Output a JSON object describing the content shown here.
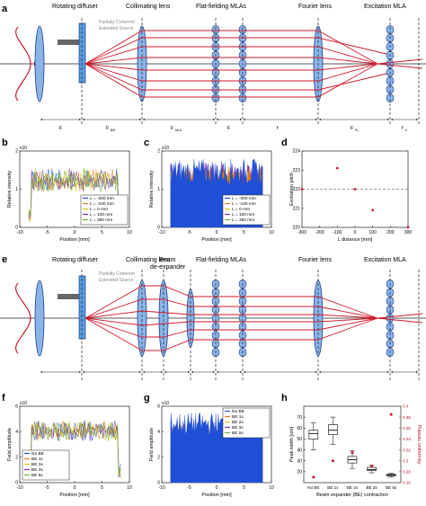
{
  "panels": {
    "a": "a",
    "b": "b",
    "c": "c",
    "d": "d",
    "e": "e",
    "f": "f",
    "g": "g",
    "h": "h"
  },
  "setup_a": {
    "labels": [
      "Rotating diffuser",
      "Collimating lens",
      "Flat-fielding MLAs",
      "Fourier lens",
      "Excitation MLA"
    ],
    "source_note": [
      "Partially Coherent",
      "Extended Source"
    ],
    "distances": [
      "F",
      "F",
      "F",
      "F",
      "f",
      "F",
      "f"
    ],
    "distance_subs": [
      "",
      "BM",
      "MLA",
      "",
      "",
      "FL",
      "e"
    ]
  },
  "setup_e": {
    "labels": [
      "Rotating diffuser",
      "Collimating lens",
      "Flat-fielding MLAs",
      "Fourier lens",
      "Excitation MLA"
    ],
    "expander_label": [
      "Beam",
      "de-expander"
    ],
    "source_note": [
      "Partially Coherent",
      "Extended Source"
    ]
  },
  "chart_data": [
    {
      "panel": "b",
      "type": "line",
      "xlabel": "Position [mm]",
      "ylabel": "Relative intensity",
      "exponent": "x10",
      "xlim": [
        -10,
        10
      ],
      "xticks": [
        "-10",
        "-5",
        "0",
        "5",
        "10"
      ],
      "yticks": [
        "0",
        "1",
        "2"
      ],
      "legend_position": "bottom-right",
      "series": [
        {
          "name": "L  = -300 mm",
          "color": "#1f4fd6"
        },
        {
          "name": "L  = -100 mm",
          "color": "#e07b14"
        },
        {
          "name": "L  = 0 mm",
          "color": "#e3c21a"
        },
        {
          "name": "L  = 100 mm",
          "color": "#7b2fa6"
        },
        {
          "name": "L  = 300 mm",
          "color": "#69b233"
        }
      ]
    },
    {
      "panel": "c",
      "type": "area",
      "xlabel": "Position [mm]",
      "ylabel": "Relative intensity",
      "exponent": "x10",
      "xlim": [
        -10,
        10
      ],
      "xticks": [
        "-10",
        "-5",
        "0",
        "5",
        "10"
      ],
      "yticks": [
        "0",
        "1",
        "2"
      ],
      "legend_position": "bottom-right",
      "series": [
        {
          "name": "L  = -300 mm",
          "color": "#1f4fd6"
        },
        {
          "name": "L  = -100 mm",
          "color": "#e07b14"
        },
        {
          "name": "L  = 0 mm",
          "color": "#e3c21a"
        },
        {
          "name": "L  = 100 mm",
          "color": "#7b2fa6"
        },
        {
          "name": "L  = 300 mm",
          "color": "#69b233"
        }
      ]
    },
    {
      "panel": "d",
      "type": "scatter",
      "xlabel": "L  distance [mm]",
      "ylabel": "Excitation pitch",
      "xlim": [
        -300,
        300
      ],
      "ylim": [
        220,
        224
      ],
      "xticks": [
        "-300",
        "-200",
        "-100",
        "0",
        "100",
        "200",
        "300"
      ],
      "yticks": [
        "220",
        "221",
        "222",
        "223",
        "224"
      ],
      "reference_line": 222,
      "x": [
        -300,
        -100,
        0,
        100,
        300
      ],
      "y": [
        222.0,
        223.1,
        222.0,
        220.9,
        220.0
      ],
      "color": "#d11a2a"
    },
    {
      "panel": "f",
      "type": "line",
      "xlabel": "Position [mm]",
      "ylabel": "Field amplitude",
      "exponent": "x10",
      "xlim": [
        -10,
        10
      ],
      "xticks": [
        "-10",
        "-5",
        "0",
        "5",
        "10"
      ],
      "yticks": [
        "0",
        "2",
        "4",
        "6"
      ],
      "legend_position": "bottom-left",
      "series": [
        {
          "name": "No BE",
          "color": "#1f4fd6"
        },
        {
          "name": "BE 1x",
          "color": "#e07b14"
        },
        {
          "name": "BE 2x",
          "color": "#e3c21a"
        },
        {
          "name": "BE 3x",
          "color": "#7b2fa6"
        },
        {
          "name": "BE 5x",
          "color": "#69b233"
        }
      ]
    },
    {
      "panel": "g",
      "type": "area",
      "xlabel": "Position [mm]",
      "ylabel": "Field amplitude",
      "exponent": "x10",
      "xlim": [
        -10,
        10
      ],
      "xticks": [
        "-10",
        "-5",
        "0",
        "5",
        "10"
      ],
      "yticks": [
        "0",
        "2",
        "4",
        "6"
      ],
      "legend_position": "top-right",
      "series": [
        {
          "name": "No BE",
          "color": "#1f4fd6"
        },
        {
          "name": "BE 1x",
          "color": "#e07b14"
        },
        {
          "name": "BE 2x",
          "color": "#e3c21a"
        },
        {
          "name": "BE 3x",
          "color": "#7b2fa6"
        },
        {
          "name": "BE 5x",
          "color": "#69b233"
        }
      ]
    },
    {
      "panel": "h",
      "type": "box",
      "xlabel": "Beam expander (BE) contraction",
      "ylabel": "Peak width [um]",
      "ylabel_right": "Plateau uniformity",
      "categories": [
        "No BE",
        "BE 1x",
        "BE 2x",
        "BE 3x",
        "BE 5x"
      ],
      "ylim": [
        10,
        80
      ],
      "yticks": [
        "20",
        "30",
        "40",
        "50",
        "60",
        "70"
      ],
      "ylim_right": [
        0.26,
        0.4
      ],
      "yticks_right": [
        "0.26",
        "0.28",
        "0.3",
        "0.32",
        "0.34",
        "0.36",
        "0.38",
        "0.4"
      ],
      "boxes": [
        {
          "min": 40,
          "q1": 50,
          "median": 55,
          "q3": 58,
          "max": 65
        },
        {
          "min": 45,
          "q1": 54,
          "median": 58,
          "q3": 63,
          "max": 70
        },
        {
          "min": 23,
          "q1": 28,
          "median": 31,
          "q3": 34,
          "max": 39
        },
        {
          "min": 19,
          "q1": 21,
          "median": 22,
          "q3": 24,
          "max": 26
        },
        {
          "min": 15,
          "q1": 16,
          "median": 17,
          "q3": 17.6,
          "max": 18.5
        }
      ],
      "uniformity": [
        0.27,
        0.3,
        0.315,
        0.29,
        0.385
      ],
      "color_right": "#c0162a"
    }
  ]
}
